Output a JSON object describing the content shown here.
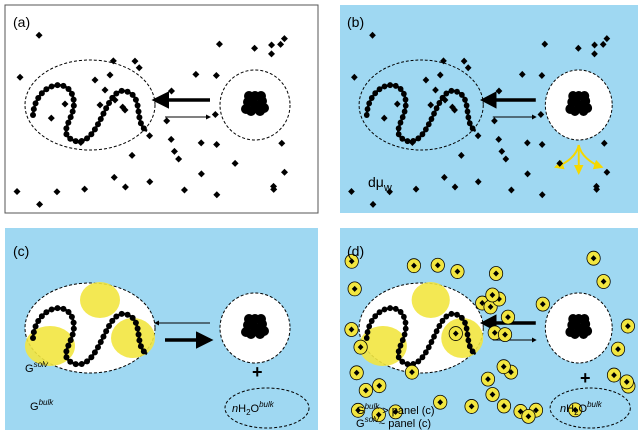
{
  "panels": [
    {
      "label": "(a)"
    },
    {
      "label": "(b)",
      "annotation": {
        "base": "dμ",
        "sub": "w"
      }
    },
    {
      "label": "(c)",
      "solvation": {
        "base": "G",
        "sup": "solv"
      },
      "bulk": {
        "base": "G",
        "sup": "bulk"
      },
      "plus": "+",
      "water": {
        "pre": "n",
        "base": "H",
        "sub": "2",
        "mid": "O",
        "sup": "bulk"
      }
    },
    {
      "label": "(d)",
      "plus": "+",
      "water": {
        "pre": "n",
        "base": "H",
        "sub": "2",
        "mid": "O",
        "sup": "bulk"
      },
      "notes": [
        {
          "base": "G",
          "sup": "bulk",
          "rest": " > panel (c)"
        },
        {
          "base": "G",
          "sup": "solv",
          "rest": "~ panel (c)"
        }
      ]
    }
  ]
}
